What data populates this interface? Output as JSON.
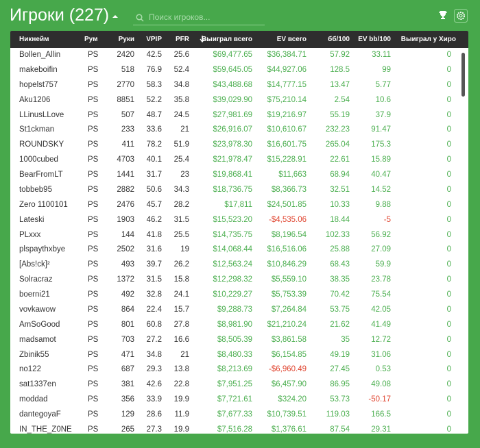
{
  "header": {
    "title": "Игроки (227)",
    "search_placeholder": "Поиск игроков..."
  },
  "table": {
    "columns": [
      "Никнейм",
      "Рум",
      "Руки",
      "VPIP",
      "PFR",
      "Выиграл всего",
      "EV всего",
      "бб/100",
      "EV bb/100",
      "Выиграл у Хиро"
    ],
    "rows": [
      [
        "Bollen_Allin",
        "PS",
        "2420",
        "42.5",
        "25.6",
        "$69,477.65",
        "$36,384.71",
        "57.92",
        "33.11",
        "0"
      ],
      [
        "makeboifin",
        "PS",
        "518",
        "76.9",
        "52.4",
        "$59,645.05",
        "$44,927.06",
        "128.5",
        "99",
        "0"
      ],
      [
        "hopelst757",
        "PS",
        "2770",
        "58.3",
        "34.8",
        "$43,488.68",
        "$14,777.15",
        "13.47",
        "5.77",
        "0"
      ],
      [
        "Aku1206",
        "PS",
        "8851",
        "52.2",
        "35.8",
        "$39,029.90",
        "$75,210.14",
        "2.54",
        "10.6",
        "0"
      ],
      [
        "LLinusLLove",
        "PS",
        "507",
        "48.7",
        "24.5",
        "$27,981.69",
        "$19,216.97",
        "55.19",
        "37.9",
        "0"
      ],
      [
        "St1ckman",
        "PS",
        "233",
        "33.6",
        "21",
        "$26,916.07",
        "$10,610.67",
        "232.23",
        "91.47",
        "0"
      ],
      [
        "ROUNDSKY",
        "PS",
        "411",
        "78.2",
        "51.9",
        "$23,978.30",
        "$16,601.75",
        "265.04",
        "175.3",
        "0"
      ],
      [
        "1000cubed",
        "PS",
        "4703",
        "40.1",
        "25.4",
        "$21,978.47",
        "$15,228.91",
        "22.61",
        "15.89",
        "0"
      ],
      [
        "BearFromLT",
        "PS",
        "1441",
        "31.7",
        "23",
        "$19,868.41",
        "$11,663",
        "68.94",
        "40.47",
        "0"
      ],
      [
        "tobbeb95",
        "PS",
        "2882",
        "50.6",
        "34.3",
        "$18,736.75",
        "$8,366.73",
        "32.51",
        "14.52",
        "0"
      ],
      [
        "Zero 1100101",
        "PS",
        "2476",
        "45.7",
        "28.2",
        "$17,811",
        "$24,501.85",
        "10.33",
        "9.88",
        "0"
      ],
      [
        "Lateski",
        "PS",
        "1903",
        "46.2",
        "31.5",
        "$15,523.20",
        "-$4,535.06",
        "18.44",
        "-5",
        "0"
      ],
      [
        "PLxxx",
        "PS",
        "144",
        "41.8",
        "25.5",
        "$14,735.75",
        "$8,196.54",
        "102.33",
        "56.92",
        "0"
      ],
      [
        "plspaythxbye",
        "PS",
        "2502",
        "31.6",
        "19",
        "$14,068.44",
        "$16,516.06",
        "25.88",
        "27.09",
        "0"
      ],
      [
        "[Abs!ck]²",
        "PS",
        "493",
        "39.7",
        "26.2",
        "$12,563.24",
        "$10,846.29",
        "68.43",
        "59.9",
        "0"
      ],
      [
        "Solracraz",
        "PS",
        "1372",
        "31.5",
        "15.8",
        "$12,298.32",
        "$5,559.10",
        "38.35",
        "23.78",
        "0"
      ],
      [
        "boerni21",
        "PS",
        "492",
        "32.8",
        "24.1",
        "$10,229.27",
        "$5,753.39",
        "70.42",
        "75.54",
        "0"
      ],
      [
        "vovkawow",
        "PS",
        "864",
        "22.4",
        "15.7",
        "$9,288.73",
        "$7,264.84",
        "53.75",
        "42.05",
        "0"
      ],
      [
        "AmSoGood",
        "PS",
        "801",
        "60.8",
        "27.8",
        "$8,981.90",
        "$21,210.24",
        "21.62",
        "41.49",
        "0"
      ],
      [
        "madsamot",
        "PS",
        "703",
        "27.2",
        "16.6",
        "$8,505.39",
        "$3,861.58",
        "35",
        "12.72",
        "0"
      ],
      [
        "Zbinik55",
        "PS",
        "471",
        "34.8",
        "21",
        "$8,480.33",
        "$6,154.85",
        "49.19",
        "31.06",
        "0"
      ],
      [
        "no122",
        "PS",
        "687",
        "29.3",
        "13.8",
        "$8,213.69",
        "-$6,960.49",
        "27.45",
        "0.53",
        "0"
      ],
      [
        "sat1337en",
        "PS",
        "381",
        "42.6",
        "22.8",
        "$7,951.25",
        "$6,457.90",
        "86.95",
        "49.08",
        "0"
      ],
      [
        "moddad",
        "PS",
        "356",
        "33.9",
        "19.9",
        "$7,721.61",
        "$324.20",
        "53.73",
        "-50.17",
        "0"
      ],
      [
        "dantegoyaF",
        "PS",
        "129",
        "28.6",
        "11.9",
        "$7,677.33",
        "$10,739.51",
        "119.03",
        "166.5",
        "0"
      ],
      [
        "IN_THE_Z0NE",
        "PS",
        "265",
        "27.3",
        "19.9",
        "$7,516.28",
        "$1,376.61",
        "87.54",
        "29.31",
        "0"
      ]
    ]
  }
}
